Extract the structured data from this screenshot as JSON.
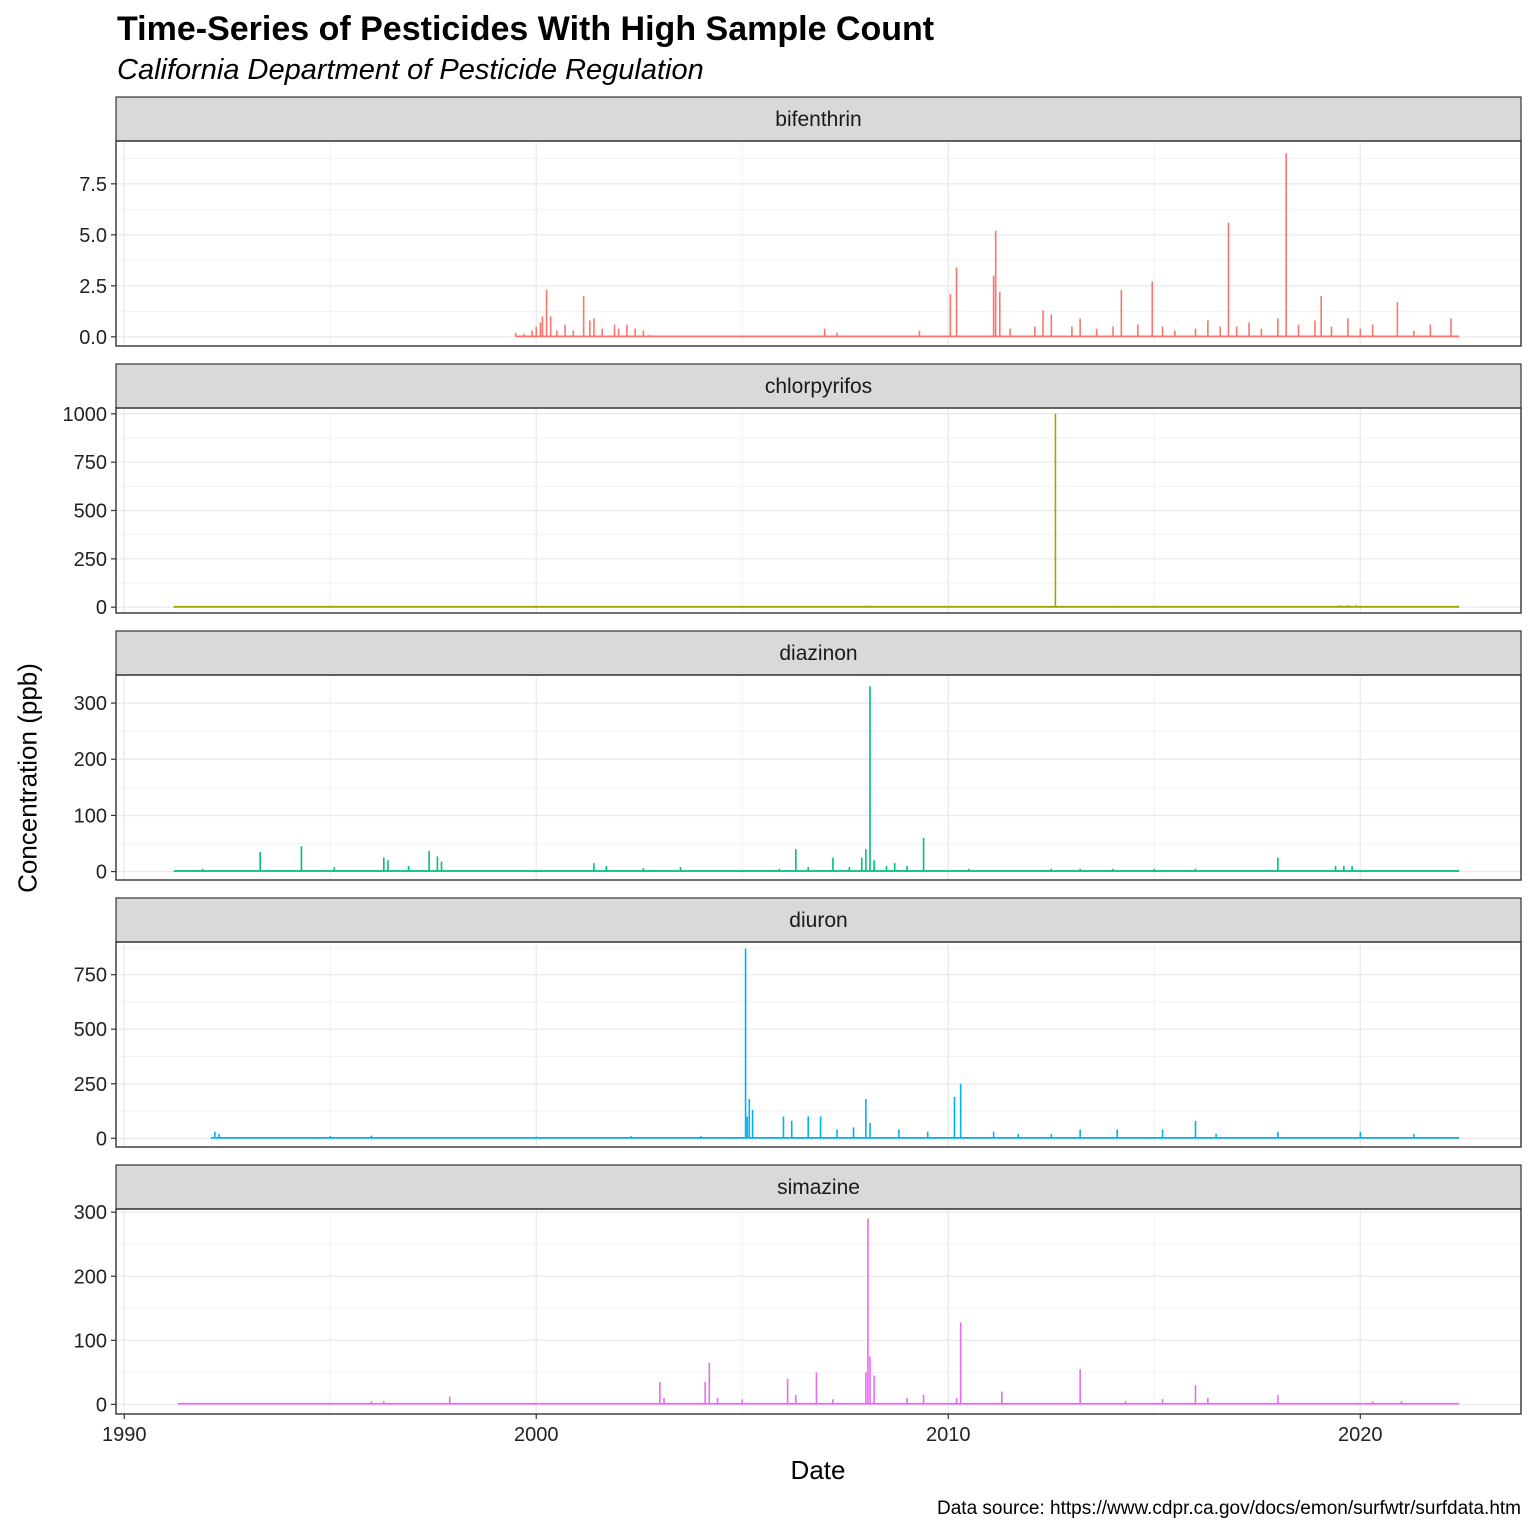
{
  "chart_data": {
    "type": "line",
    "title": "Time-Series of Pesticides With High Sample Count",
    "subtitle": "California Department of Pesticide Regulation",
    "xlabel": "Date",
    "ylabel": "Concentration (ppb)",
    "caption": "Data source: https://www.cdpr.ca.gov/docs/emon/surfwtr/surfdata.htm",
    "xlim": [
      1989.8,
      2023.9
    ],
    "x_ticks": [
      1990,
      2000,
      2010,
      2020
    ],
    "grid": true,
    "legend": "none",
    "panels": [
      {
        "name": "bifenthrin",
        "color": "#F8766D",
        "ylim": [
          -0.45,
          9.6
        ],
        "y_ticks": [
          0.0,
          2.5,
          5.0,
          7.5
        ],
        "y_tick_labels": [
          "0.0",
          "2.5",
          "5.0",
          "7.5"
        ],
        "baseline": 0.02,
        "x_range": [
          1999.5,
          2022.4
        ],
        "points": [
          [
            1999.5,
            0.2
          ],
          [
            1999.7,
            0.15
          ],
          [
            1999.9,
            0.3
          ],
          [
            2000.0,
            0.5
          ],
          [
            2000.1,
            0.7
          ],
          [
            2000.15,
            1.0
          ],
          [
            2000.25,
            2.3
          ],
          [
            2000.35,
            1.0
          ],
          [
            2000.5,
            0.3
          ],
          [
            2000.7,
            0.6
          ],
          [
            2000.9,
            0.3
          ],
          [
            2001.15,
            2.0
          ],
          [
            2001.3,
            0.8
          ],
          [
            2001.4,
            0.9
          ],
          [
            2001.6,
            0.4
          ],
          [
            2001.9,
            0.6
          ],
          [
            2002.0,
            0.4
          ],
          [
            2002.2,
            0.6
          ],
          [
            2002.4,
            0.4
          ],
          [
            2002.6,
            0.3
          ],
          [
            2002.75,
            0.1
          ],
          [
            2007.0,
            0.4
          ],
          [
            2007.3,
            0.2
          ],
          [
            2009.3,
            0.3
          ],
          [
            2010.05,
            2.1
          ],
          [
            2010.2,
            3.4
          ],
          [
            2011.1,
            3.0
          ],
          [
            2011.15,
            5.2
          ],
          [
            2011.25,
            2.2
          ],
          [
            2011.5,
            0.4
          ],
          [
            2012.1,
            0.5
          ],
          [
            2012.3,
            1.3
          ],
          [
            2012.5,
            1.1
          ],
          [
            2013.0,
            0.5
          ],
          [
            2013.2,
            0.9
          ],
          [
            2013.6,
            0.4
          ],
          [
            2014.0,
            0.5
          ],
          [
            2014.2,
            2.3
          ],
          [
            2014.6,
            0.6
          ],
          [
            2014.95,
            2.7
          ],
          [
            2015.2,
            0.5
          ],
          [
            2015.5,
            0.3
          ],
          [
            2016.0,
            0.4
          ],
          [
            2016.3,
            0.8
          ],
          [
            2016.6,
            0.5
          ],
          [
            2016.8,
            5.6
          ],
          [
            2017.0,
            0.5
          ],
          [
            2017.3,
            0.7
          ],
          [
            2017.6,
            0.4
          ],
          [
            2018.0,
            0.9
          ],
          [
            2018.2,
            9.0
          ],
          [
            2018.5,
            0.6
          ],
          [
            2018.9,
            0.8
          ],
          [
            2019.05,
            2.0
          ],
          [
            2019.3,
            0.5
          ],
          [
            2019.7,
            0.9
          ],
          [
            2020.0,
            0.4
          ],
          [
            2020.3,
            0.6
          ],
          [
            2020.9,
            1.7
          ],
          [
            2021.3,
            0.3
          ],
          [
            2021.7,
            0.6
          ],
          [
            2022.2,
            0.9
          ]
        ]
      },
      {
        "name": "chlorpyrifos",
        "color": "#A3A500",
        "ylim": [
          -30,
          1030
        ],
        "y_ticks": [
          0,
          250,
          500,
          750,
          1000
        ],
        "y_tick_labels": [
          "0",
          "250",
          "500",
          "750",
          "1000"
        ],
        "baseline": 2,
        "x_range": [
          1991.2,
          2022.4
        ],
        "points": [
          [
            2008.0,
            8
          ],
          [
            2012.6,
            1000
          ],
          [
            2014.0,
            5
          ],
          [
            2019.5,
            10
          ],
          [
            2019.7,
            10
          ],
          [
            2019.9,
            10
          ]
        ]
      },
      {
        "name": "diazinon",
        "color": "#00BF7D",
        "ylim": [
          -15,
          350
        ],
        "y_ticks": [
          0,
          100,
          200,
          300
        ],
        "y_tick_labels": [
          "0",
          "100",
          "200",
          "300"
        ],
        "baseline": 1,
        "x_range": [
          1991.2,
          2022.4
        ],
        "points": [
          [
            1991.9,
            5
          ],
          [
            1993.3,
            35
          ],
          [
            1994.3,
            45
          ],
          [
            1995.1,
            8
          ],
          [
            1996.3,
            25
          ],
          [
            1996.4,
            20
          ],
          [
            1996.9,
            10
          ],
          [
            1997.4,
            37
          ],
          [
            1997.6,
            27
          ],
          [
            1997.7,
            18
          ],
          [
            2001.4,
            15
          ],
          [
            2001.7,
            10
          ],
          [
            2002.6,
            6
          ],
          [
            2003.5,
            8
          ],
          [
            2005.9,
            5
          ],
          [
            2006.3,
            40
          ],
          [
            2006.6,
            8
          ],
          [
            2007.2,
            25
          ],
          [
            2007.6,
            8
          ],
          [
            2007.9,
            25
          ],
          [
            2008.0,
            40
          ],
          [
            2008.1,
            330
          ],
          [
            2008.2,
            20
          ],
          [
            2008.5,
            10
          ],
          [
            2008.7,
            15
          ],
          [
            2009.0,
            10
          ],
          [
            2009.4,
            60
          ],
          [
            2010.5,
            5
          ],
          [
            2012.5,
            5
          ],
          [
            2013.2,
            5
          ],
          [
            2014.0,
            5
          ],
          [
            2015.0,
            5
          ],
          [
            2016.0,
            5
          ],
          [
            2018.0,
            25
          ],
          [
            2019.4,
            10
          ],
          [
            2019.6,
            10
          ],
          [
            2019.8,
            10
          ]
        ]
      },
      {
        "name": "diuron",
        "color": "#00B0F6",
        "ylim": [
          -40,
          900
        ],
        "y_ticks": [
          0,
          250,
          500,
          750
        ],
        "y_tick_labels": [
          "0",
          "250",
          "500",
          "750"
        ],
        "baseline": 2,
        "x_range": [
          1992.1,
          2022.4
        ],
        "points": [
          [
            1992.2,
            30
          ],
          [
            1992.3,
            20
          ],
          [
            1995.0,
            10
          ],
          [
            1996.0,
            12
          ],
          [
            2000.0,
            8
          ],
          [
            2002.3,
            10
          ],
          [
            2004.0,
            10
          ],
          [
            2005.08,
            870
          ],
          [
            2005.12,
            100
          ],
          [
            2005.17,
            180
          ],
          [
            2005.25,
            130
          ],
          [
            2006.0,
            100
          ],
          [
            2006.2,
            80
          ],
          [
            2006.6,
            100
          ],
          [
            2006.9,
            100
          ],
          [
            2007.3,
            40
          ],
          [
            2007.7,
            50
          ],
          [
            2008.0,
            180
          ],
          [
            2008.1,
            70
          ],
          [
            2008.8,
            40
          ],
          [
            2009.5,
            30
          ],
          [
            2010.15,
            190
          ],
          [
            2010.3,
            250
          ],
          [
            2011.1,
            30
          ],
          [
            2011.7,
            20
          ],
          [
            2012.5,
            20
          ],
          [
            2013.2,
            40
          ],
          [
            2014.1,
            40
          ],
          [
            2015.2,
            40
          ],
          [
            2016.0,
            80
          ],
          [
            2016.5,
            20
          ],
          [
            2018.0,
            30
          ],
          [
            2020.0,
            30
          ],
          [
            2021.3,
            20
          ]
        ]
      },
      {
        "name": "simazine",
        "color": "#E76BF3",
        "ylim": [
          -15,
          305
        ],
        "y_ticks": [
          0,
          100,
          200,
          300
        ],
        "y_tick_labels": [
          "0",
          "100",
          "200",
          "300"
        ],
        "baseline": 1,
        "x_range": [
          1991.3,
          2022.4
        ],
        "points": [
          [
            1996.0,
            5
          ],
          [
            1996.3,
            5
          ],
          [
            1997.9,
            12
          ],
          [
            2003.0,
            35
          ],
          [
            2003.1,
            10
          ],
          [
            2004.1,
            35
          ],
          [
            2004.2,
            65
          ],
          [
            2004.4,
            10
          ],
          [
            2005.0,
            8
          ],
          [
            2006.1,
            40
          ],
          [
            2006.3,
            15
          ],
          [
            2006.8,
            50
          ],
          [
            2007.2,
            8
          ],
          [
            2008.0,
            50
          ],
          [
            2008.05,
            290
          ],
          [
            2008.1,
            75
          ],
          [
            2008.2,
            45
          ],
          [
            2009.0,
            10
          ],
          [
            2009.4,
            15
          ],
          [
            2010.2,
            10
          ],
          [
            2010.3,
            128
          ],
          [
            2011.3,
            20
          ],
          [
            2013.2,
            55
          ],
          [
            2014.3,
            5
          ],
          [
            2015.2,
            8
          ],
          [
            2016.0,
            30
          ],
          [
            2016.3,
            10
          ],
          [
            2018.0,
            15
          ],
          [
            2020.3,
            5
          ],
          [
            2021.0,
            5
          ]
        ]
      }
    ]
  }
}
